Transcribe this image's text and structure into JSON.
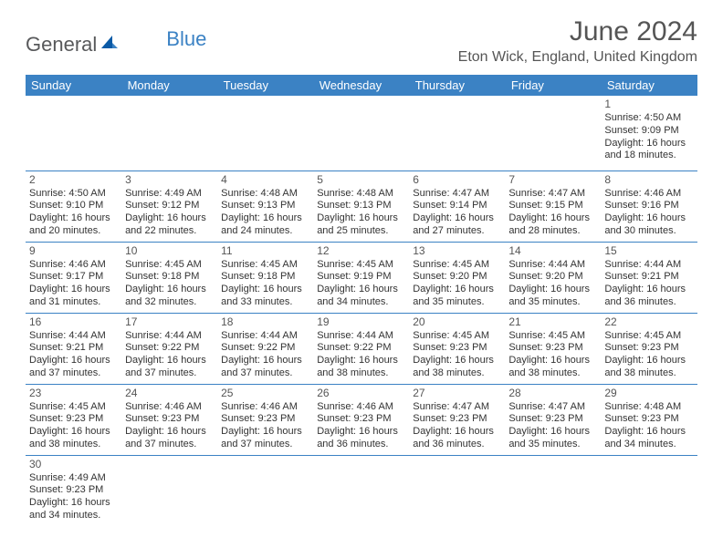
{
  "logo": {
    "text1": "General",
    "text2": "Blue"
  },
  "title": "June 2024",
  "location": "Eton Wick, England, United Kingdom",
  "colors": {
    "header_bg": "#3b82c4",
    "header_text": "#ffffff",
    "border": "#3b82c4",
    "title_text": "#555555",
    "body_text": "#333333",
    "logo_gray": "#58595b",
    "logo_blue": "#3b82c4",
    "page_bg": "#ffffff"
  },
  "typography": {
    "title_fontsize": 30,
    "subtitle_fontsize": 16,
    "dayheader_fontsize": 13,
    "cell_fontsize": 11,
    "daynum_fontsize": 12
  },
  "day_headers": [
    "Sunday",
    "Monday",
    "Tuesday",
    "Wednesday",
    "Thursday",
    "Friday",
    "Saturday"
  ],
  "weeks": [
    [
      null,
      null,
      null,
      null,
      null,
      null,
      {
        "n": "1",
        "sr": "Sunrise: 4:50 AM",
        "ss": "Sunset: 9:09 PM",
        "d1": "Daylight: 16 hours",
        "d2": "and 18 minutes."
      }
    ],
    [
      {
        "n": "2",
        "sr": "Sunrise: 4:50 AM",
        "ss": "Sunset: 9:10 PM",
        "d1": "Daylight: 16 hours",
        "d2": "and 20 minutes."
      },
      {
        "n": "3",
        "sr": "Sunrise: 4:49 AM",
        "ss": "Sunset: 9:12 PM",
        "d1": "Daylight: 16 hours",
        "d2": "and 22 minutes."
      },
      {
        "n": "4",
        "sr": "Sunrise: 4:48 AM",
        "ss": "Sunset: 9:13 PM",
        "d1": "Daylight: 16 hours",
        "d2": "and 24 minutes."
      },
      {
        "n": "5",
        "sr": "Sunrise: 4:48 AM",
        "ss": "Sunset: 9:13 PM",
        "d1": "Daylight: 16 hours",
        "d2": "and 25 minutes."
      },
      {
        "n": "6",
        "sr": "Sunrise: 4:47 AM",
        "ss": "Sunset: 9:14 PM",
        "d1": "Daylight: 16 hours",
        "d2": "and 27 minutes."
      },
      {
        "n": "7",
        "sr": "Sunrise: 4:47 AM",
        "ss": "Sunset: 9:15 PM",
        "d1": "Daylight: 16 hours",
        "d2": "and 28 minutes."
      },
      {
        "n": "8",
        "sr": "Sunrise: 4:46 AM",
        "ss": "Sunset: 9:16 PM",
        "d1": "Daylight: 16 hours",
        "d2": "and 30 minutes."
      }
    ],
    [
      {
        "n": "9",
        "sr": "Sunrise: 4:46 AM",
        "ss": "Sunset: 9:17 PM",
        "d1": "Daylight: 16 hours",
        "d2": "and 31 minutes."
      },
      {
        "n": "10",
        "sr": "Sunrise: 4:45 AM",
        "ss": "Sunset: 9:18 PM",
        "d1": "Daylight: 16 hours",
        "d2": "and 32 minutes."
      },
      {
        "n": "11",
        "sr": "Sunrise: 4:45 AM",
        "ss": "Sunset: 9:18 PM",
        "d1": "Daylight: 16 hours",
        "d2": "and 33 minutes."
      },
      {
        "n": "12",
        "sr": "Sunrise: 4:45 AM",
        "ss": "Sunset: 9:19 PM",
        "d1": "Daylight: 16 hours",
        "d2": "and 34 minutes."
      },
      {
        "n": "13",
        "sr": "Sunrise: 4:45 AM",
        "ss": "Sunset: 9:20 PM",
        "d1": "Daylight: 16 hours",
        "d2": "and 35 minutes."
      },
      {
        "n": "14",
        "sr": "Sunrise: 4:44 AM",
        "ss": "Sunset: 9:20 PM",
        "d1": "Daylight: 16 hours",
        "d2": "and 35 minutes."
      },
      {
        "n": "15",
        "sr": "Sunrise: 4:44 AM",
        "ss": "Sunset: 9:21 PM",
        "d1": "Daylight: 16 hours",
        "d2": "and 36 minutes."
      }
    ],
    [
      {
        "n": "16",
        "sr": "Sunrise: 4:44 AM",
        "ss": "Sunset: 9:21 PM",
        "d1": "Daylight: 16 hours",
        "d2": "and 37 minutes."
      },
      {
        "n": "17",
        "sr": "Sunrise: 4:44 AM",
        "ss": "Sunset: 9:22 PM",
        "d1": "Daylight: 16 hours",
        "d2": "and 37 minutes."
      },
      {
        "n": "18",
        "sr": "Sunrise: 4:44 AM",
        "ss": "Sunset: 9:22 PM",
        "d1": "Daylight: 16 hours",
        "d2": "and 37 minutes."
      },
      {
        "n": "19",
        "sr": "Sunrise: 4:44 AM",
        "ss": "Sunset: 9:22 PM",
        "d1": "Daylight: 16 hours",
        "d2": "and 38 minutes."
      },
      {
        "n": "20",
        "sr": "Sunrise: 4:45 AM",
        "ss": "Sunset: 9:23 PM",
        "d1": "Daylight: 16 hours",
        "d2": "and 38 minutes."
      },
      {
        "n": "21",
        "sr": "Sunrise: 4:45 AM",
        "ss": "Sunset: 9:23 PM",
        "d1": "Daylight: 16 hours",
        "d2": "and 38 minutes."
      },
      {
        "n": "22",
        "sr": "Sunrise: 4:45 AM",
        "ss": "Sunset: 9:23 PM",
        "d1": "Daylight: 16 hours",
        "d2": "and 38 minutes."
      }
    ],
    [
      {
        "n": "23",
        "sr": "Sunrise: 4:45 AM",
        "ss": "Sunset: 9:23 PM",
        "d1": "Daylight: 16 hours",
        "d2": "and 38 minutes."
      },
      {
        "n": "24",
        "sr": "Sunrise: 4:46 AM",
        "ss": "Sunset: 9:23 PM",
        "d1": "Daylight: 16 hours",
        "d2": "and 37 minutes."
      },
      {
        "n": "25",
        "sr": "Sunrise: 4:46 AM",
        "ss": "Sunset: 9:23 PM",
        "d1": "Daylight: 16 hours",
        "d2": "and 37 minutes."
      },
      {
        "n": "26",
        "sr": "Sunrise: 4:46 AM",
        "ss": "Sunset: 9:23 PM",
        "d1": "Daylight: 16 hours",
        "d2": "and 36 minutes."
      },
      {
        "n": "27",
        "sr": "Sunrise: 4:47 AM",
        "ss": "Sunset: 9:23 PM",
        "d1": "Daylight: 16 hours",
        "d2": "and 36 minutes."
      },
      {
        "n": "28",
        "sr": "Sunrise: 4:47 AM",
        "ss": "Sunset: 9:23 PM",
        "d1": "Daylight: 16 hours",
        "d2": "and 35 minutes."
      },
      {
        "n": "29",
        "sr": "Sunrise: 4:48 AM",
        "ss": "Sunset: 9:23 PM",
        "d1": "Daylight: 16 hours",
        "d2": "and 34 minutes."
      }
    ],
    [
      {
        "n": "30",
        "sr": "Sunrise: 4:49 AM",
        "ss": "Sunset: 9:23 PM",
        "d1": "Daylight: 16 hours",
        "d2": "and 34 minutes."
      },
      null,
      null,
      null,
      null,
      null,
      null
    ]
  ]
}
